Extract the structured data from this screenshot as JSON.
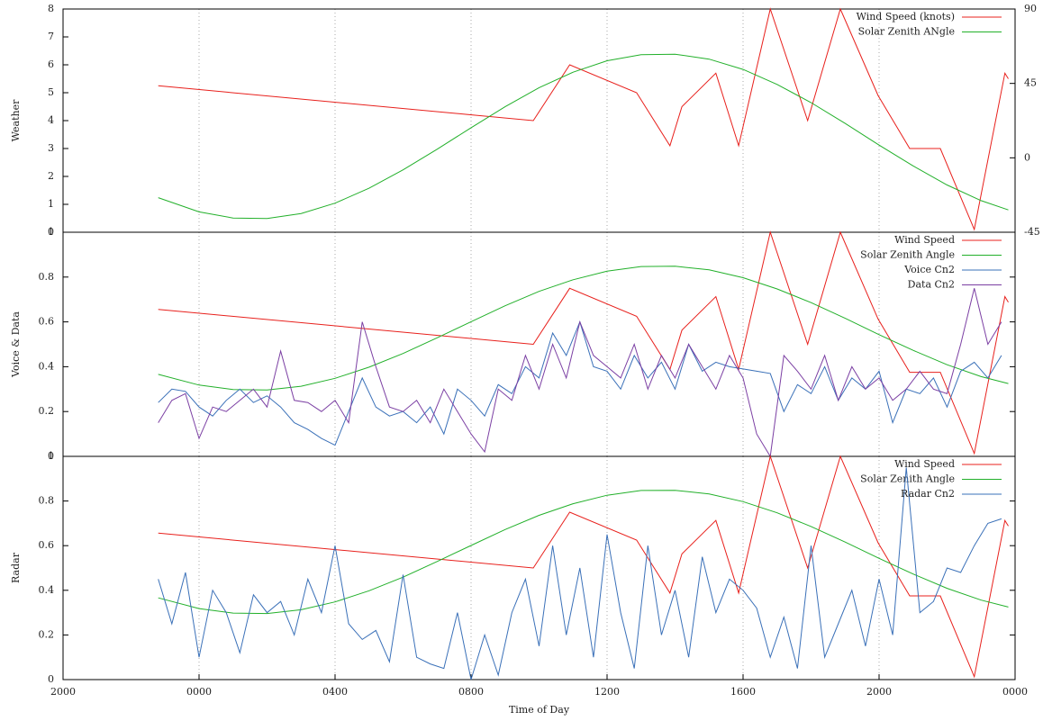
{
  "chart_data": [
    {
      "type": "line",
      "ylabel": "Weather",
      "xlim": [
        -4,
        24
      ],
      "xgrid": [
        0,
        4,
        8,
        12,
        16,
        20
      ],
      "ylim": [
        0,
        8
      ],
      "yticks": [
        0,
        1,
        2,
        3,
        4,
        5,
        6,
        7,
        8
      ],
      "y2lim": [
        -45,
        90
      ],
      "y2ticks": [
        -45,
        0,
        45,
        90
      ],
      "legend": "top-right",
      "series": [
        {
          "name": "Wind Speed (knots)",
          "color": "#e8201c",
          "x": [
            -1.2,
            9.83,
            10.9,
            12.87,
            13.85,
            14.2,
            15.2,
            15.87,
            16.8,
            17.9,
            18.86,
            19.97,
            20.9,
            21.8,
            22.8,
            23.7,
            23.8
          ],
          "values": [
            5.25,
            4.0,
            6.0,
            5.0,
            3.1,
            4.5,
            5.7,
            3.1,
            8.0,
            4.0,
            8.0,
            4.9,
            3.0,
            3.0,
            0.1,
            5.7,
            5.5
          ]
        },
        {
          "name": "Solar Zenith ANgle",
          "color": "#22b02a",
          "axis": "y2",
          "x": [
            -1.2,
            0,
            1,
            2,
            3,
            4,
            5,
            6,
            7,
            8,
            9,
            10,
            11,
            12,
            13,
            14,
            15,
            16,
            17,
            18,
            19,
            20,
            21,
            22,
            23,
            23.8
          ],
          "values": [
            -24.1,
            -32.7,
            -36.4,
            -36.7,
            -33.7,
            -27.4,
            -18.4,
            -7.3,
            5.2,
            18.2,
            30.9,
            42.4,
            51.8,
            58.7,
            62.4,
            62.7,
            59.7,
            53.5,
            44.4,
            33.4,
            20.8,
            7.7,
            -4.9,
            -16.4,
            -25.9,
            -31.5
          ]
        }
      ]
    },
    {
      "type": "line",
      "ylabel": "Voice & Data",
      "xlim": [
        -4,
        24
      ],
      "xgrid": [
        0,
        4,
        8,
        12,
        16,
        20
      ],
      "ylim": [
        0,
        1
      ],
      "yticks": [
        0,
        0.2,
        0.4,
        0.6,
        0.8,
        1
      ],
      "legend": "top-right",
      "series": [
        {
          "name": "Wind Speed",
          "color": "#e8201c",
          "x": [
            -1.2,
            9.83,
            10.9,
            12.87,
            13.85,
            14.2,
            15.2,
            15.87,
            16.8,
            17.9,
            18.86,
            19.97,
            20.9,
            21.8,
            22.8,
            23.7,
            23.8
          ],
          "values": [
            0.656,
            0.5,
            0.75,
            0.625,
            0.388,
            0.563,
            0.713,
            0.388,
            1.0,
            0.5,
            1.0,
            0.613,
            0.375,
            0.375,
            0.013,
            0.713,
            0.688
          ]
        },
        {
          "name": "Solar Zenith Angle",
          "color": "#22b02a",
          "x": [
            -1.2,
            0,
            1,
            2,
            3,
            4,
            5,
            6,
            7,
            8,
            9,
            10,
            11,
            12,
            13,
            14,
            15,
            16,
            17,
            18,
            19,
            20,
            21,
            22,
            23,
            23.8
          ],
          "values": [
            0.366,
            0.318,
            0.298,
            0.296,
            0.313,
            0.348,
            0.398,
            0.459,
            0.529,
            0.601,
            0.672,
            0.736,
            0.788,
            0.826,
            0.847,
            0.848,
            0.832,
            0.797,
            0.747,
            0.686,
            0.616,
            0.543,
            0.473,
            0.409,
            0.356,
            0.325
          ]
        },
        {
          "name": "Voice Cn2",
          "color": "#3a70b8",
          "x": [
            -1.2,
            -0.8,
            -0.4,
            0,
            0.4,
            0.8,
            1.2,
            1.6,
            2,
            2.4,
            2.8,
            3.2,
            3.6,
            4,
            4.4,
            4.8,
            5.2,
            5.6,
            6,
            6.4,
            6.8,
            7.2,
            7.6,
            8,
            8.4,
            8.8,
            9.2,
            9.6,
            10,
            10.4,
            10.8,
            11.2,
            11.6,
            12,
            12.4,
            12.8,
            13.2,
            13.6,
            14,
            14.4,
            14.8,
            15.2,
            15.6,
            16,
            16.4,
            16.8,
            17.2,
            17.6,
            18,
            18.4,
            18.8,
            19.2,
            19.6,
            20,
            20.4,
            20.8,
            21.2,
            21.6,
            22,
            22.4,
            22.8,
            23.2,
            23.6
          ],
          "values": [
            0.24,
            0.3,
            0.29,
            0.22,
            0.18,
            0.25,
            0.3,
            0.24,
            0.27,
            0.22,
            0.15,
            0.12,
            0.08,
            0.05,
            0.2,
            0.35,
            0.22,
            0.18,
            0.2,
            0.15,
            0.22,
            0.1,
            0.3,
            0.25,
            0.18,
            0.32,
            0.28,
            0.4,
            0.35,
            0.55,
            0.45,
            0.6,
            0.4,
            0.38,
            0.3,
            0.45,
            0.35,
            0.42,
            0.3,
            0.5,
            0.38,
            0.42,
            0.4,
            0.39,
            0.38,
            0.37,
            0.2,
            0.32,
            0.28,
            0.4,
            0.25,
            0.35,
            0.3,
            0.38,
            0.15,
            0.3,
            0.28,
            0.35,
            0.22,
            0.38,
            0.42,
            0.35,
            0.45
          ]
        },
        {
          "name": "Data Cn2",
          "color": "#7b3fa3",
          "x": [
            -1.2,
            -0.8,
            -0.4,
            0,
            0.4,
            0.8,
            1.2,
            1.6,
            2,
            2.4,
            2.8,
            3.2,
            3.6,
            4,
            4.4,
            4.8,
            5.2,
            5.6,
            6,
            6.4,
            6.8,
            7.2,
            7.6,
            8,
            8.4,
            8.8,
            9.2,
            9.6,
            10,
            10.4,
            10.8,
            11.2,
            11.6,
            12,
            12.4,
            12.8,
            13.2,
            13.6,
            14,
            14.4,
            14.8,
            15.2,
            15.6,
            16,
            16.4,
            16.8,
            17.2,
            17.6,
            18,
            18.4,
            18.8,
            19.2,
            19.6,
            20,
            20.4,
            20.8,
            21.2,
            21.6,
            22,
            22.4,
            22.8,
            23.2,
            23.6
          ],
          "values": [
            0.15,
            0.25,
            0.28,
            0.08,
            0.22,
            0.2,
            0.25,
            0.3,
            0.22,
            0.47,
            0.25,
            0.24,
            0.2,
            0.25,
            0.15,
            0.6,
            0.4,
            0.22,
            0.2,
            0.25,
            0.15,
            0.3,
            0.2,
            0.1,
            0.02,
            0.3,
            0.25,
            0.45,
            0.3,
            0.5,
            0.35,
            0.6,
            0.45,
            0.4,
            0.35,
            0.5,
            0.3,
            0.45,
            0.35,
            0.5,
            0.4,
            0.3,
            0.45,
            0.35,
            0.1,
            0.0,
            0.45,
            0.38,
            0.3,
            0.45,
            0.25,
            0.4,
            0.3,
            0.35,
            0.25,
            0.3,
            0.38,
            0.3,
            0.28,
            0.5,
            0.75,
            0.5,
            0.6
          ]
        }
      ]
    },
    {
      "type": "line",
      "ylabel": "Radar",
      "xlabel": "Time of Day",
      "xlim": [
        -4,
        24
      ],
      "xticks": [
        {
          "value": -4,
          "label": "2000"
        },
        {
          "value": 0,
          "label": "0000"
        },
        {
          "value": 4,
          "label": "0400"
        },
        {
          "value": 8,
          "label": "0800"
        },
        {
          "value": 12,
          "label": "1200"
        },
        {
          "value": 16,
          "label": "1600"
        },
        {
          "value": 20,
          "label": "2000"
        },
        {
          "value": 24,
          "label": "0000"
        }
      ],
      "ylim": [
        0,
        1
      ],
      "yticks": [
        0,
        0.2,
        0.4,
        0.6,
        0.8,
        1
      ],
      "legend": "top-right",
      "series": [
        {
          "name": "Wind Speed",
          "color": "#e8201c",
          "x": [
            -1.2,
            9.83,
            10.9,
            12.87,
            13.85,
            14.2,
            15.2,
            15.87,
            16.8,
            17.9,
            18.86,
            19.97,
            20.9,
            21.8,
            22.8,
            23.7,
            23.8
          ],
          "values": [
            0.656,
            0.5,
            0.75,
            0.625,
            0.388,
            0.563,
            0.713,
            0.388,
            1.0,
            0.5,
            1.0,
            0.613,
            0.375,
            0.375,
            0.013,
            0.713,
            0.688
          ]
        },
        {
          "name": "Solar Zenith Angle",
          "color": "#22b02a",
          "x": [
            -1.2,
            0,
            1,
            2,
            3,
            4,
            5,
            6,
            7,
            8,
            9,
            10,
            11,
            12,
            13,
            14,
            15,
            16,
            17,
            18,
            19,
            20,
            21,
            22,
            23,
            23.8
          ],
          "values": [
            0.366,
            0.318,
            0.298,
            0.296,
            0.313,
            0.348,
            0.398,
            0.459,
            0.529,
            0.601,
            0.672,
            0.736,
            0.788,
            0.826,
            0.847,
            0.848,
            0.832,
            0.797,
            0.747,
            0.686,
            0.616,
            0.543,
            0.473,
            0.409,
            0.356,
            0.325
          ]
        },
        {
          "name": "Radar Cn2",
          "color": "#3a70b8",
          "x": [
            -1.2,
            -0.8,
            -0.4,
            0,
            0.4,
            0.8,
            1.2,
            1.6,
            2,
            2.4,
            2.8,
            3.2,
            3.6,
            4,
            4.4,
            4.8,
            5.2,
            5.6,
            6,
            6.4,
            6.8,
            7.2,
            7.6,
            8,
            8.4,
            8.8,
            9.2,
            9.6,
            10,
            10.4,
            10.8,
            11.2,
            11.6,
            12,
            12.4,
            12.8,
            13.2,
            13.6,
            14,
            14.4,
            14.8,
            15.2,
            15.6,
            16,
            16.4,
            16.8,
            17.2,
            17.6,
            18,
            18.4,
            18.8,
            19.2,
            19.6,
            20,
            20.4,
            20.8,
            21.2,
            21.6,
            22,
            22.4,
            22.8,
            23.2,
            23.6
          ],
          "values": [
            0.45,
            0.25,
            0.48,
            0.1,
            0.4,
            0.3,
            0.12,
            0.38,
            0.3,
            0.35,
            0.2,
            0.45,
            0.3,
            0.6,
            0.25,
            0.18,
            0.22,
            0.08,
            0.47,
            0.1,
            0.07,
            0.05,
            0.3,
            0.0,
            0.2,
            0.02,
            0.3,
            0.45,
            0.15,
            0.6,
            0.2,
            0.5,
            0.1,
            0.65,
            0.3,
            0.05,
            0.6,
            0.2,
            0.4,
            0.1,
            0.55,
            0.3,
            0.45,
            0.4,
            0.32,
            0.1,
            0.28,
            0.05,
            0.6,
            0.1,
            0.25,
            0.4,
            0.15,
            0.45,
            0.2,
            0.95,
            0.3,
            0.35,
            0.5,
            0.48,
            0.6,
            0.7,
            0.72
          ]
        }
      ]
    }
  ]
}
